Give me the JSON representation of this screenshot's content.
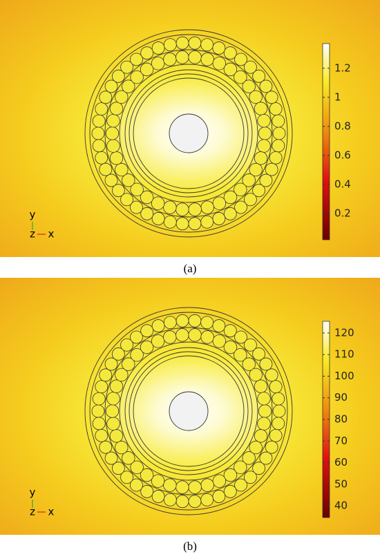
{
  "panels": [
    {
      "caption": "(a)",
      "colorbar": {
        "range": [
          0.02,
          1.37
        ],
        "ticks": [
          0.2,
          0.4,
          0.6,
          0.8,
          1,
          1.2
        ]
      },
      "triad": {
        "up": "y",
        "out": "z",
        "right": "x"
      }
    },
    {
      "caption": "(b)",
      "colorbar": {
        "range": [
          34.6,
          125.4
        ],
        "ticks": [
          40,
          50,
          60,
          70,
          80,
          90,
          100,
          110,
          120
        ]
      },
      "triad": {
        "up": "y",
        "out": "z",
        "right": "x"
      }
    }
  ]
}
